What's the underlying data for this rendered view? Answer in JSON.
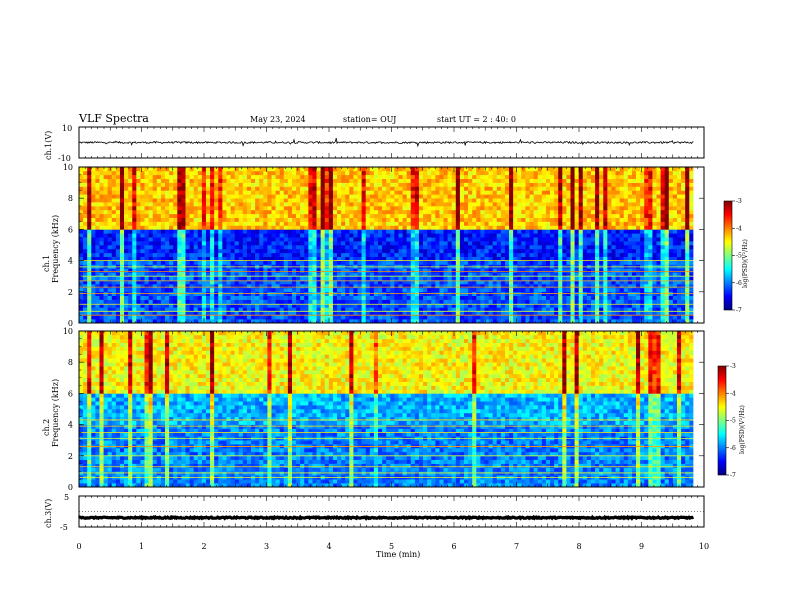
{
  "header": {
    "title": "VLF Spectra",
    "date": "May 23, 2024",
    "station": "station= OUJ",
    "start": "start  UT =   2 : 40: 0"
  },
  "colors": {
    "spectrogram_low": "#00007f",
    "spectrogram_high": "#7f0000",
    "trace": "#000000"
  },
  "chart_data": [
    {
      "type": "line",
      "panel": "ch1-waveform",
      "ylabel": "ch.1(V)",
      "ylim": [
        -10,
        10
      ],
      "yticks": [
        "10",
        "-10"
      ],
      "xlim": [
        0,
        10
      ],
      "series": [
        {
          "name": "ch.1",
          "baseline": 0,
          "noise_amplitude": 0.6
        }
      ]
    },
    {
      "type": "heatmap",
      "panel": "ch1-spectrogram",
      "ylabel": [
        "ch.1",
        "Frequency (kHz)"
      ],
      "ylim": [
        0,
        10
      ],
      "yticks": [
        "0",
        "2",
        "4",
        "6",
        "8",
        "10"
      ],
      "xlim": [
        0,
        10
      ],
      "data_end_min": 9.83,
      "colorbar": {
        "label": "log(PSD)(V²/Hz)",
        "range": [
          -7,
          -3
        ],
        "ticks": [
          "-3",
          "-4",
          "-5",
          "-6",
          "-7"
        ]
      },
      "description_levels": {
        "above_6kHz": -4.3,
        "4_to_6kHz": -6.4,
        "below_4kHz": -6.2
      },
      "lines_khz": [
        0.5,
        0.75,
        1.2,
        1.9,
        2.3,
        2.7,
        3.0,
        3.3,
        3.6,
        4.0
      ]
    },
    {
      "type": "heatmap",
      "panel": "ch2-spectrogram",
      "ylabel": [
        "ch.2",
        "Frequency (kHz)"
      ],
      "ylim": [
        0,
        10
      ],
      "yticks": [
        "0",
        "2",
        "4",
        "6",
        "8",
        "10"
      ],
      "xlim": [
        0,
        10
      ],
      "data_end_min": 9.83,
      "colorbar": {
        "label": "log(PSD)(V²/Hz)",
        "range": [
          -7,
          -3
        ],
        "ticks": [
          "-3",
          "-4",
          "-5",
          "-6",
          "-7"
        ]
      },
      "description_levels": {
        "above_6kHz": -4.5,
        "4_to_6kHz": -5.8,
        "below_4kHz": -6.0
      },
      "lines_khz": [
        0.6,
        0.9,
        1.3,
        2.0,
        2.6,
        3.1,
        3.5,
        3.9,
        4.3
      ]
    },
    {
      "type": "line",
      "panel": "ch3-waveform",
      "ylabel": "ch.3(V)",
      "ylim": [
        -5,
        5
      ],
      "yticks": [
        "5",
        "0",
        "-5"
      ],
      "xlim": [
        0,
        10
      ],
      "xlabel": "Time (min)",
      "xticks": [
        "0",
        "1",
        "2",
        "3",
        "4",
        "5",
        "6",
        "7",
        "8",
        "9",
        "10"
      ],
      "series": [
        {
          "name": "ch.3",
          "baseline": -2,
          "noise_amplitude": 0.2
        }
      ]
    }
  ]
}
